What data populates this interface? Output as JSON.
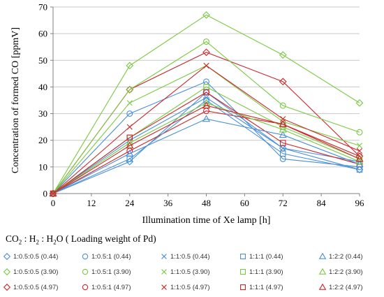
{
  "chart_data": {
    "type": "line",
    "title": "",
    "xlabel": "Illumination time of Xe lamp [h]",
    "ylabel": "Concentration of formed CO [ppmV]",
    "x_ticks": [
      0,
      12,
      24,
      36,
      48,
      60,
      72,
      84,
      96
    ],
    "y_ticks": [
      0,
      10,
      20,
      30,
      40,
      50,
      60,
      70
    ],
    "xlim": [
      0,
      96
    ],
    "ylim": [
      0,
      70
    ],
    "grid": "horizontal",
    "legend_placement": "bottom",
    "legend_title": {
      "prefix": "CO",
      "sub1": "2",
      "mid1": " : H",
      "sub2": "2",
      "mid2": " : H",
      "sub3": "2",
      "suffix": "O ( Loading weight of Pd)"
    },
    "x": [
      0,
      24,
      48,
      72,
      96
    ],
    "series": [
      {
        "name": "1:0.5:0.5 (0.44)",
        "marker": "diamond",
        "color": "#4a90d9",
        "values": [
          0,
          12,
          38,
          17,
          9
        ]
      },
      {
        "name": "1:0.5:0.5 (3.90)",
        "marker": "diamond",
        "color": "#7ac943",
        "values": [
          0,
          48,
          67,
          52,
          34
        ]
      },
      {
        "name": "1:0.5:0.5 (4.97)",
        "marker": "diamond",
        "color": "#cc2529",
        "values": [
          0,
          39,
          53,
          42,
          14
        ]
      },
      {
        "name": "1:0.5:1 (0.44)",
        "marker": "circle",
        "color": "#4a90d9",
        "values": [
          0,
          30,
          42,
          13,
          10
        ]
      },
      {
        "name": "1:0.5:1 (3.90)",
        "marker": "circle",
        "color": "#7ac943",
        "values": [
          0,
          39,
          57,
          33,
          23
        ]
      },
      {
        "name": "1:0.5:1 (4.97)",
        "marker": "circle",
        "color": "#cc2529",
        "values": [
          0,
          16,
          31,
          26,
          14
        ]
      },
      {
        "name": "1:1:0.5 (0.44)",
        "marker": "x",
        "color": "#4a90d9",
        "values": [
          0,
          20,
          36,
          17,
          12
        ]
      },
      {
        "name": "1:1:0.5 (3.90)",
        "marker": "x",
        "color": "#7ac943",
        "values": [
          0,
          34,
          48,
          27,
          18
        ]
      },
      {
        "name": "1:1:0.5 (4.97)",
        "marker": "x",
        "color": "#cc2529",
        "values": [
          0,
          25,
          48,
          28,
          16
        ]
      },
      {
        "name": "1:1:1 (0.44)",
        "marker": "square",
        "color": "#4a90d9",
        "values": [
          0,
          13,
          35,
          15,
          9
        ]
      },
      {
        "name": "1:1:1 (3.90)",
        "marker": "square",
        "color": "#7ac943",
        "values": [
          0,
          21,
          40,
          25,
          13
        ]
      },
      {
        "name": "1:1:1 (4.97)",
        "marker": "square",
        "color": "#cc2529",
        "values": [
          0,
          21,
          38,
          19,
          11
        ]
      },
      {
        "name": "1:2:2 (0.44)",
        "marker": "triangle",
        "color": "#4a90d9",
        "values": [
          0,
          15,
          28,
          22,
          11
        ]
      },
      {
        "name": "1:2:2 (3.90)",
        "marker": "triangle",
        "color": "#7ac943",
        "values": [
          0,
          19,
          34,
          24,
          12
        ]
      },
      {
        "name": "1:2:2 (4.97)",
        "marker": "triangle",
        "color": "#cc2529",
        "values": [
          0,
          18,
          33,
          26,
          13
        ]
      }
    ]
  }
}
